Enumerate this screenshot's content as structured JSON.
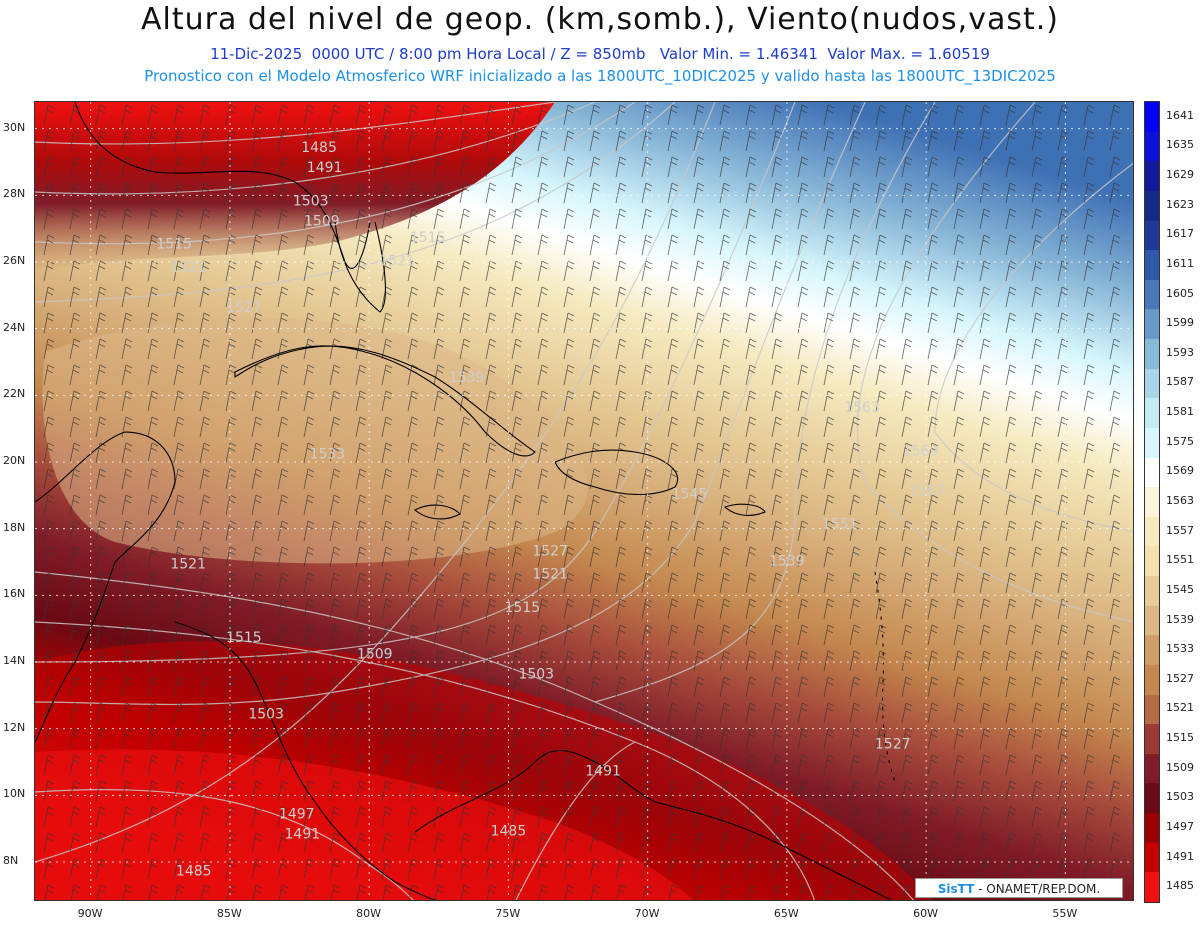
{
  "header": {
    "title": "Altura del nivel de geop. (km,somb.), Viento(nudos,vast.)",
    "subtitle": "11-Dic-2025  0000 UTC / 8:00 pm Hora Local / Z = 850mb   Valor Min. = 1.46341  Valor Max. = 1.60519",
    "subtitle2": "Pronostico con el Modelo Atmosferico WRF inicializado a las 1800UTC_10DIC2025 y valido hasta las  1800UTC_13DIC2025"
  },
  "map": {
    "lon_range": [
      -92,
      -52.5
    ],
    "lat_range": [
      6.8,
      30.8
    ],
    "lon_ticks": [
      "90W",
      "85W",
      "80W",
      "75W",
      "70W",
      "65W",
      "60W",
      "55W"
    ],
    "lon_tick_values": [
      -90,
      -85,
      -80,
      -75,
      -70,
      -65,
      -60,
      -55
    ],
    "lat_ticks": [
      "30N",
      "28N",
      "26N",
      "24N",
      "22N",
      "20N",
      "18N",
      "16N",
      "14N",
      "12N",
      "10N",
      "8N"
    ],
    "lat_tick_values": [
      30,
      28,
      26,
      24,
      22,
      20,
      18,
      16,
      14,
      12,
      10,
      8
    ],
    "contour_labels": [
      {
        "text": "1485",
        "lon": -81.8,
        "lat": 29.3
      },
      {
        "text": "1491",
        "lon": -81.6,
        "lat": 28.7
      },
      {
        "text": "1503",
        "lon": -82.1,
        "lat": 27.7
      },
      {
        "text": "1509",
        "lon": -81.7,
        "lat": 27.1
      },
      {
        "text": "1515",
        "lon": -87.0,
        "lat": 26.4
      },
      {
        "text": "1521",
        "lon": -86.5,
        "lat": 25.7
      },
      {
        "text": "1515",
        "lon": -77.9,
        "lat": 26.6
      },
      {
        "text": "1521",
        "lon": -79.0,
        "lat": 25.9
      },
      {
        "text": "1527",
        "lon": -84.5,
        "lat": 24.5
      },
      {
        "text": "1539",
        "lon": -76.5,
        "lat": 22.4
      },
      {
        "text": "1533",
        "lon": -81.5,
        "lat": 20.1
      },
      {
        "text": "1563",
        "lon": -62.3,
        "lat": 21.5
      },
      {
        "text": "1569",
        "lon": -60.2,
        "lat": 20.2
      },
      {
        "text": "1557",
        "lon": -60.0,
        "lat": 19.0
      },
      {
        "text": "1551",
        "lon": -63.1,
        "lat": 18.0
      },
      {
        "text": "1545",
        "lon": -68.5,
        "lat": 18.9
      },
      {
        "text": "1539",
        "lon": -65.0,
        "lat": 16.9
      },
      {
        "text": "1527",
        "lon": -73.5,
        "lat": 17.2
      },
      {
        "text": "1521",
        "lon": -73.5,
        "lat": 16.5
      },
      {
        "text": "1521",
        "lon": -86.5,
        "lat": 16.8
      },
      {
        "text": "1515",
        "lon": -74.5,
        "lat": 15.5
      },
      {
        "text": "1515",
        "lon": -84.5,
        "lat": 14.6
      },
      {
        "text": "1509",
        "lon": -79.8,
        "lat": 14.1
      },
      {
        "text": "1503",
        "lon": -74.0,
        "lat": 13.5
      },
      {
        "text": "1503",
        "lon": -83.7,
        "lat": 12.3
      },
      {
        "text": "1491",
        "lon": -71.6,
        "lat": 10.6
      },
      {
        "text": "1497",
        "lon": -82.6,
        "lat": 9.3
      },
      {
        "text": "1491",
        "lon": -82.4,
        "lat": 8.7
      },
      {
        "text": "1485",
        "lon": -75.0,
        "lat": 8.8
      },
      {
        "text": "1485",
        "lon": -86.3,
        "lat": 7.6
      },
      {
        "text": "1527",
        "lon": -61.2,
        "lat": 11.4
      }
    ]
  },
  "legend": {
    "levels": [
      "1641",
      "1635",
      "1629",
      "1623",
      "1617",
      "1611",
      "1605",
      "1599",
      "1593",
      "1587",
      "1581",
      "1575",
      "1569",
      "1563",
      "1557",
      "1551",
      "1545",
      "1539",
      "1533",
      "1527",
      "1521",
      "1515",
      "1509",
      "1503",
      "1497",
      "1491",
      "1485"
    ],
    "colors": [
      "#0000ff",
      "#0a10d8",
      "#0f1a9a",
      "#152a86",
      "#1f3a98",
      "#3058a8",
      "#4a78b8",
      "#6a98c8",
      "#8ab8d8",
      "#a8d6e8",
      "#c4ecf4",
      "#d6f6fc",
      "#ffffff",
      "#fcf4d6",
      "#f6eac0",
      "#f2e0b0",
      "#e6cc98",
      "#dcb888",
      "#cf9e68",
      "#c4884e",
      "#b46c44",
      "#9a3a34",
      "#801c28",
      "#6a0a14",
      "#9a0000",
      "#c60000",
      "#f01010"
    ]
  },
  "credit": {
    "brand": "SisTT",
    "org": "- ONAMET/REP.DOM."
  }
}
